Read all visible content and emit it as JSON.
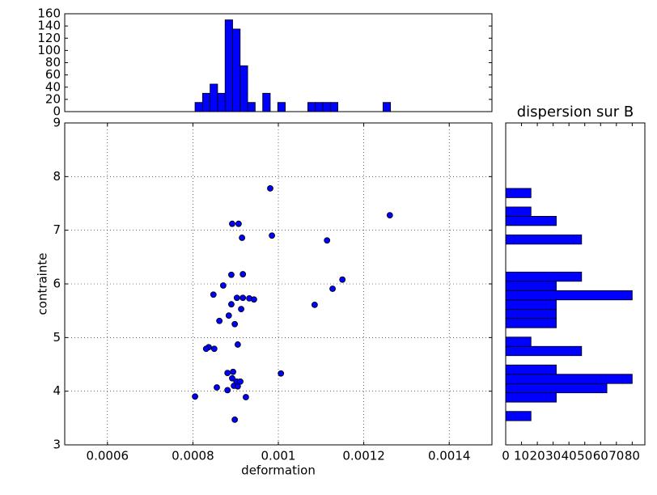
{
  "chart_data": [
    {
      "type": "scatter",
      "xlabel": "deformation",
      "ylabel": "contrainte",
      "color": "#0000ff",
      "grid": true,
      "x": [
        0.000981,
        0.001261,
        0.000892,
        0.000907,
        0.000915,
        0.000985,
        0.001114,
        0.00089,
        0.000917,
        0.00115,
        0.000871,
        0.001127,
        0.000848,
        0.000903,
        0.000917,
        0.000932,
        0.000943,
        0.00089,
        0.001085,
        0.000913,
        0.000884,
        0.000862,
        0.000898,
        0.000905,
        0.000837,
        0.000831,
        0.00085,
        0.000881,
        0.000894,
        0.001006,
        0.000892,
        0.000902,
        0.000911,
        0.000896,
        0.000905,
        0.000856,
        0.000881,
        0.000924,
        0.000805,
        0.000898
      ],
      "y": [
        7.78,
        7.28,
        7.12,
        7.12,
        6.86,
        6.9,
        6.81,
        6.17,
        6.18,
        6.08,
        5.97,
        5.91,
        5.8,
        5.74,
        5.74,
        5.73,
        5.71,
        5.62,
        5.61,
        5.53,
        5.41,
        5.31,
        5.25,
        4.87,
        4.82,
        4.79,
        4.79,
        4.34,
        4.36,
        4.33,
        4.24,
        4.18,
        4.18,
        4.1,
        4.09,
        4.07,
        4.02,
        3.89,
        3.9,
        3.47
      ],
      "xlim": [
        0.0005,
        0.0015
      ],
      "xticks": [
        0.0006,
        0.0008,
        0.001,
        0.0012,
        0.0014
      ],
      "ylim": [
        3,
        9
      ],
      "yticks": [
        3,
        4,
        5,
        6,
        7,
        8,
        9
      ]
    },
    {
      "type": "histogram",
      "orientation": "vertical",
      "color": "#0000ff",
      "bins": [
        0.000805,
        0.0008226,
        0.0008402,
        0.0008578,
        0.0008754,
        0.000893,
        0.0009106,
        0.0009282,
        0.0009458,
        0.0009634,
        0.000981,
        0.0009986,
        0.0010162,
        0.0010338,
        0.0010514,
        0.001069,
        0.0010866,
        0.0011042,
        0.0011218,
        0.0011394,
        0.001157,
        0.0011746,
        0.0011922,
        0.0012098,
        0.0012274,
        0.001245,
        0.0012626
      ],
      "values": [
        15,
        30,
        45,
        30,
        150,
        135,
        75,
        15,
        0,
        30,
        0,
        15,
        0,
        0,
        0,
        15,
        15,
        15,
        15,
        0,
        0,
        0,
        0,
        0,
        0,
        15
      ],
      "xlim": [
        0.0005,
        0.0015
      ],
      "ylim": [
        0,
        160
      ],
      "yticks": [
        0,
        20,
        40,
        60,
        80,
        100,
        120,
        140,
        160
      ]
    },
    {
      "type": "histogram",
      "orientation": "horizontal",
      "title": "dispersion sur B",
      "color": "#0000ff",
      "bins": [
        3.45,
        3.6232,
        3.7964,
        3.9696,
        4.1428,
        4.316,
        4.4892,
        4.6624,
        4.8356,
        5.0088,
        5.182,
        5.3552,
        5.5284,
        5.7016,
        5.8748,
        6.048,
        6.2212,
        6.3944,
        6.5676,
        6.7408,
        6.914,
        7.0872,
        7.2604,
        7.4336,
        7.6068,
        7.78
      ],
      "values": [
        16,
        0,
        32,
        64,
        80,
        32,
        0,
        48,
        16,
        0,
        32,
        32,
        32,
        80,
        32,
        48,
        0,
        0,
        0,
        48,
        0,
        32,
        16,
        0,
        16
      ],
      "xlim": [
        0,
        88
      ],
      "xticks": [
        0,
        10,
        20,
        30,
        40,
        50,
        60,
        70,
        80
      ],
      "ylim": [
        3,
        9
      ]
    }
  ]
}
